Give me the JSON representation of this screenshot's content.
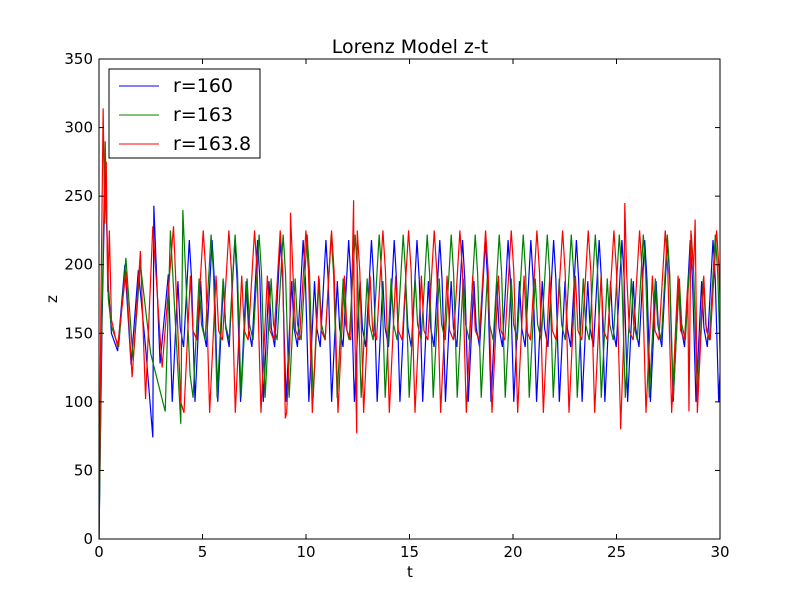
{
  "chart_data": {
    "type": "line",
    "title": "Lorenz Model z-t",
    "xlabel": "t",
    "ylabel": "z",
    "xlim": [
      0,
      30
    ],
    "ylim": [
      0,
      350
    ],
    "xticks": [
      0,
      5,
      10,
      15,
      20,
      25,
      30
    ],
    "yticks": [
      0,
      50,
      100,
      150,
      200,
      250,
      300,
      350
    ],
    "xtick_labels": [
      "0",
      "5",
      "10",
      "15",
      "20",
      "25",
      "30"
    ],
    "ytick_labels": [
      "0",
      "50",
      "100",
      "150",
      "200",
      "250",
      "300",
      "350"
    ],
    "grid": false,
    "legend_position": "top-left",
    "series": [
      {
        "name": "r=160",
        "color": "#0000ff",
        "initial_spike": [
          [
            0.0,
            0
          ],
          [
            0.15,
            160
          ],
          [
            0.3,
            270
          ],
          [
            0.45,
            185
          ],
          [
            0.6,
            150
          ]
        ],
        "transient": [
          [
            0.9,
            137
          ],
          [
            1.25,
            200
          ],
          [
            1.55,
            127
          ],
          [
            1.9,
            196
          ],
          [
            2.25,
            140
          ],
          [
            2.6,
            74
          ],
          [
            2.65,
            243
          ],
          [
            2.95,
            128
          ],
          [
            3.35,
            193
          ]
        ],
        "oscillation": {
          "t_start": 3.4,
          "t_end": 30,
          "period": 0.55,
          "peaks": [
            188,
            218
          ],
          "troughs": [
            100,
            140
          ]
        }
      },
      {
        "name": "r=163",
        "color": "#008000",
        "initial_spike": [
          [
            0.0,
            0
          ],
          [
            0.15,
            170
          ],
          [
            0.3,
            290
          ],
          [
            0.45,
            175
          ],
          [
            0.6,
            155
          ]
        ],
        "transient": [
          [
            0.95,
            140
          ],
          [
            1.3,
            205
          ],
          [
            1.65,
            130
          ],
          [
            2.0,
            200
          ],
          [
            2.5,
            135
          ],
          [
            3.2,
            93
          ],
          [
            3.45,
            225
          ],
          [
            3.95,
            84
          ],
          [
            4.05,
            240
          ],
          [
            4.4,
            120
          ]
        ],
        "oscillation": {
          "t_start": 4.4,
          "t_end": 30,
          "period": 0.58,
          "peaks": [
            190,
            222
          ],
          "troughs": [
            103,
            145
          ]
        }
      },
      {
        "name": "r=163.8",
        "color": "#ff0000",
        "initial_spike": [
          [
            0.0,
            0
          ],
          [
            0.1,
            180
          ],
          [
            0.2,
            314
          ],
          [
            0.28,
            230
          ],
          [
            0.35,
            275
          ],
          [
            0.42,
            180
          ],
          [
            0.5,
            225
          ],
          [
            0.6,
            160
          ]
        ],
        "transient": [
          [
            0.9,
            140
          ],
          [
            1.3,
            195
          ],
          [
            1.6,
            118
          ],
          [
            2.0,
            210
          ],
          [
            2.25,
            102
          ],
          [
            2.6,
            228
          ],
          [
            3.05,
            125
          ],
          [
            3.6,
            228
          ],
          [
            3.95,
            100
          ]
        ],
        "oscillation": {
          "t_start": 3.95,
          "t_end": 30,
          "period": 0.62,
          "peaks": [
            192,
            225
          ],
          "troughs": [
            92,
            145
          ]
        },
        "outliers": [
          [
            9.0,
            88
          ],
          [
            9.25,
            238
          ],
          [
            12.45,
            77
          ],
          [
            12.3,
            247
          ],
          [
            25.2,
            80
          ],
          [
            25.4,
            245
          ],
          [
            28.5,
            93
          ],
          [
            28.8,
            233
          ]
        ]
      }
    ]
  }
}
